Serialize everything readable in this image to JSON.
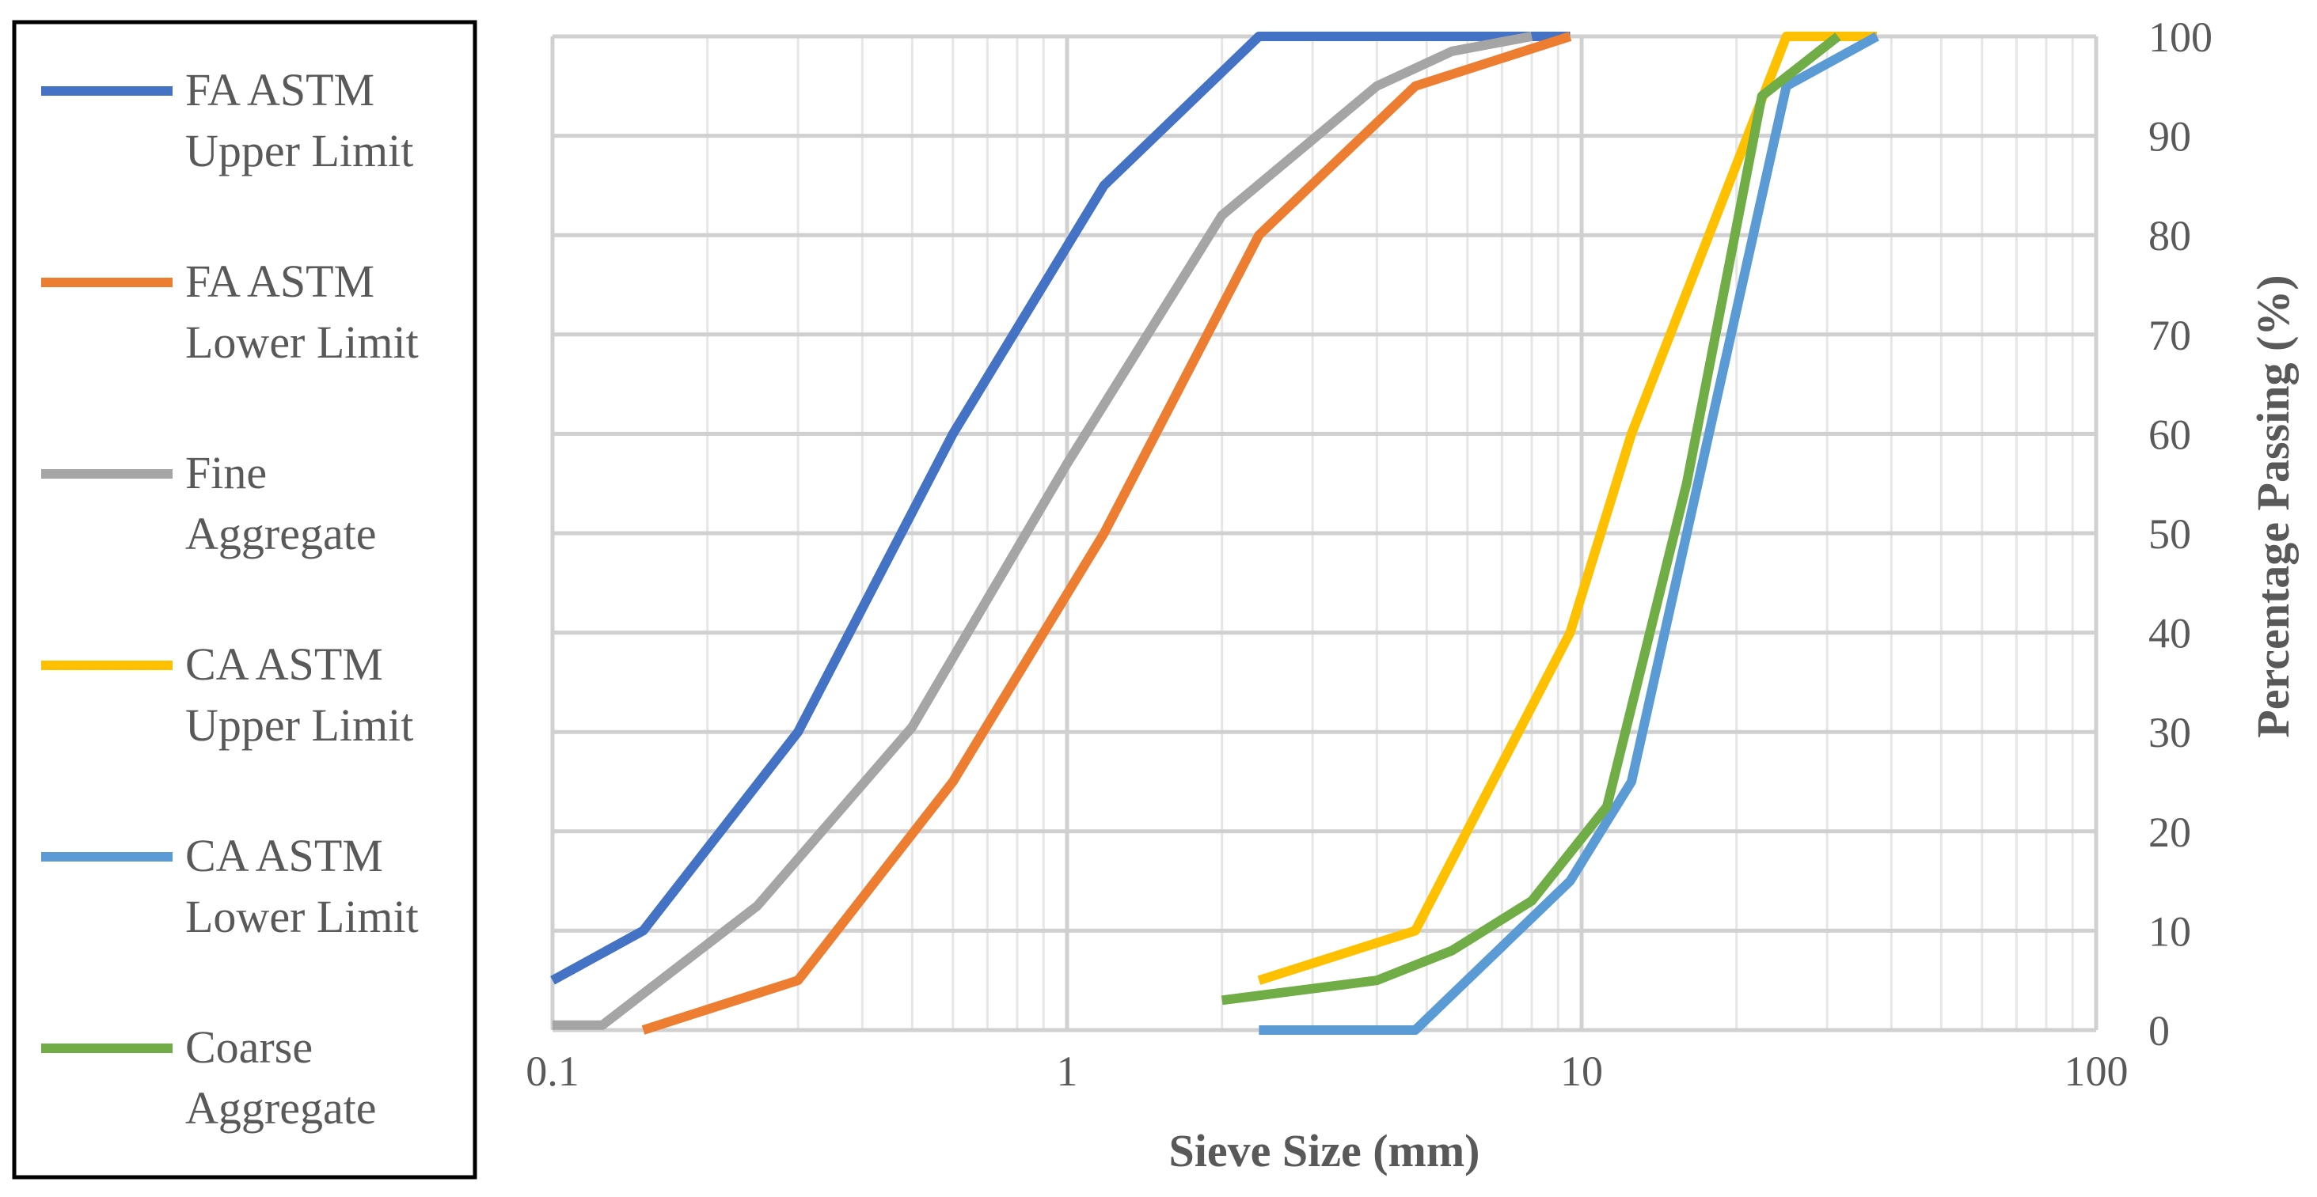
{
  "chart_data": {
    "type": "line",
    "xscale": "log",
    "xlim": [
      0.1,
      100
    ],
    "ylim": [
      0,
      100
    ],
    "xlabel": "Sieve Size (mm)",
    "ylabel": "Percentage Passing (%)",
    "xticks": [
      "0.1",
      "1",
      "10",
      "100"
    ],
    "yticks": [
      "0",
      "10",
      "20",
      "30",
      "40",
      "50",
      "60",
      "70",
      "80",
      "90",
      "100"
    ],
    "y_axis_side": "right",
    "grid": true,
    "legend_position": "left",
    "series": [
      {
        "name": "FA ASTM Upper Limit",
        "color": "#4472C4",
        "x": [
          0.075,
          0.15,
          0.3,
          0.6,
          1.18,
          2.36,
          4.75,
          9.5
        ],
        "y": [
          5,
          10,
          30,
          60,
          85,
          100,
          100,
          100
        ]
      },
      {
        "name": "FA ASTM Lower Limit",
        "color": "#ED7D31",
        "x": [
          0.15,
          0.3,
          0.6,
          1.18,
          2.36,
          4.75,
          9.5
        ],
        "y": [
          0,
          5,
          25,
          50,
          80,
          95,
          100
        ]
      },
      {
        "name": "Fine Aggregate",
        "color": "#A5A5A5",
        "x": [
          0.1,
          0.125,
          0.25,
          0.5,
          1.0,
          2.0,
          4.0,
          5.6,
          8.0
        ],
        "y": [
          0.5,
          0.5,
          12.5,
          30.5,
          57,
          82,
          95,
          98.5,
          100
        ]
      },
      {
        "name": "CA ASTM Upper Limit",
        "color": "#FFC000",
        "x": [
          2.36,
          4.75,
          9.5,
          12.5,
          25,
          37.5
        ],
        "y": [
          5,
          10,
          40,
          60,
          100,
          100
        ]
      },
      {
        "name": "CA ASTM Lower Limit",
        "color": "#5B9BD5",
        "x": [
          2.36,
          4.75,
          9.5,
          12.5,
          25,
          37.5
        ],
        "y": [
          0,
          0,
          15,
          25,
          95,
          100
        ]
      },
      {
        "name": "Coarse Aggregate",
        "color": "#70AD47",
        "x": [
          2.0,
          4.0,
          5.6,
          8.0,
          11.2,
          16.0,
          22.4,
          31.5
        ],
        "y": [
          3,
          5,
          8,
          13,
          22.5,
          55,
          94,
          100
        ]
      }
    ]
  },
  "legend": {
    "items": [
      {
        "line1": "FA ASTM",
        "line2": "Upper Limit"
      },
      {
        "line1": "FA ASTM",
        "line2": "Lower Limit"
      },
      {
        "line1": "Fine",
        "line2": "Aggregate"
      },
      {
        "line1": "CA ASTM",
        "line2": "Upper Limit"
      },
      {
        "line1": "CA ASTM",
        "line2": "Lower Limit"
      },
      {
        "line1": "Coarse",
        "line2": "Aggregate"
      }
    ]
  }
}
